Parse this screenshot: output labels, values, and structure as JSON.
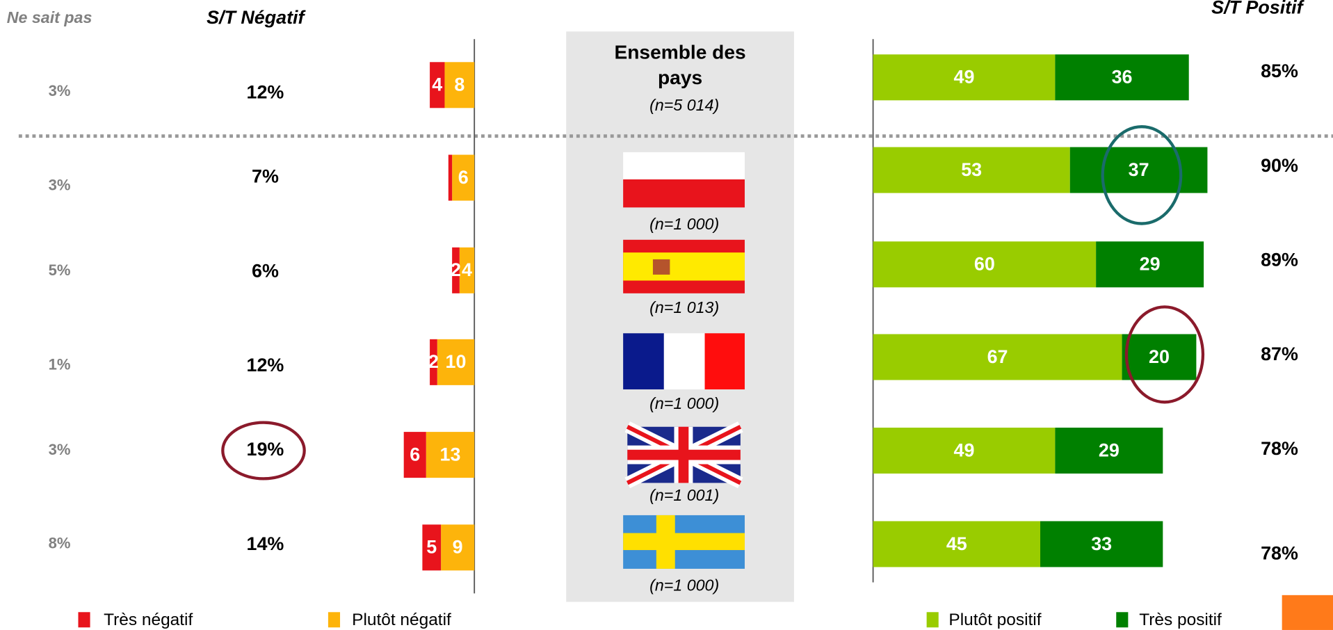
{
  "chart_data": {
    "type": "diverging-bar",
    "categories": [
      "Ensemble des pays",
      null,
      null,
      null,
      null,
      null
    ],
    "sample_labels": [
      "(n=5 014)",
      "(n=1 000)",
      "(n=1 013)",
      "(n=1 000)",
      "(n=1 001)",
      "(n=1 000)"
    ],
    "series": [
      {
        "name": "Très négatif",
        "color": "#e8141c",
        "side": "left",
        "values": [
          4,
          1,
          2,
          2,
          6,
          5
        ],
        "value_labels": [
          "4",
          null,
          "2",
          "2",
          "6",
          "5"
        ]
      },
      {
        "name": "Plutôt négatif",
        "color": "#fdb40b",
        "side": "left",
        "values": [
          8,
          6,
          4,
          10,
          13,
          9
        ],
        "value_labels": [
          "8",
          "6",
          "4",
          "10",
          "13",
          "9"
        ]
      },
      {
        "name": "Plutôt positif",
        "color": "#99cc00",
        "side": "right",
        "values": [
          49,
          53,
          60,
          67,
          49,
          45
        ],
        "value_labels": [
          "49",
          "53",
          "60",
          "67",
          "49",
          "45"
        ]
      },
      {
        "name": "Très positif",
        "color": "#008000",
        "side": "right",
        "values": [
          36,
          37,
          29,
          20,
          29,
          33
        ],
        "value_labels": [
          "36",
          "37",
          "29",
          "20",
          "29",
          "33"
        ]
      }
    ],
    "dont_know": {
      "name": "Ne sait pas",
      "values": [
        3,
        3,
        5,
        1,
        3,
        8
      ],
      "value_labels": [
        "3%",
        "3%",
        "5%",
        "1%",
        "3%",
        "8%"
      ]
    },
    "subtotal_negative": {
      "name": "S/T Négatif",
      "values": [
        12,
        7,
        6,
        12,
        19,
        14
      ],
      "value_labels": [
        "12%",
        "7%",
        "6%",
        "12%",
        "19%",
        "14%"
      ]
    },
    "subtotal_positive": {
      "name": "S/T Positif",
      "values": [
        85,
        90,
        89,
        87,
        78,
        78
      ],
      "value_labels": [
        "85%",
        "90%",
        "89%",
        "87%",
        "78%",
        "78%"
      ]
    }
  }
}
